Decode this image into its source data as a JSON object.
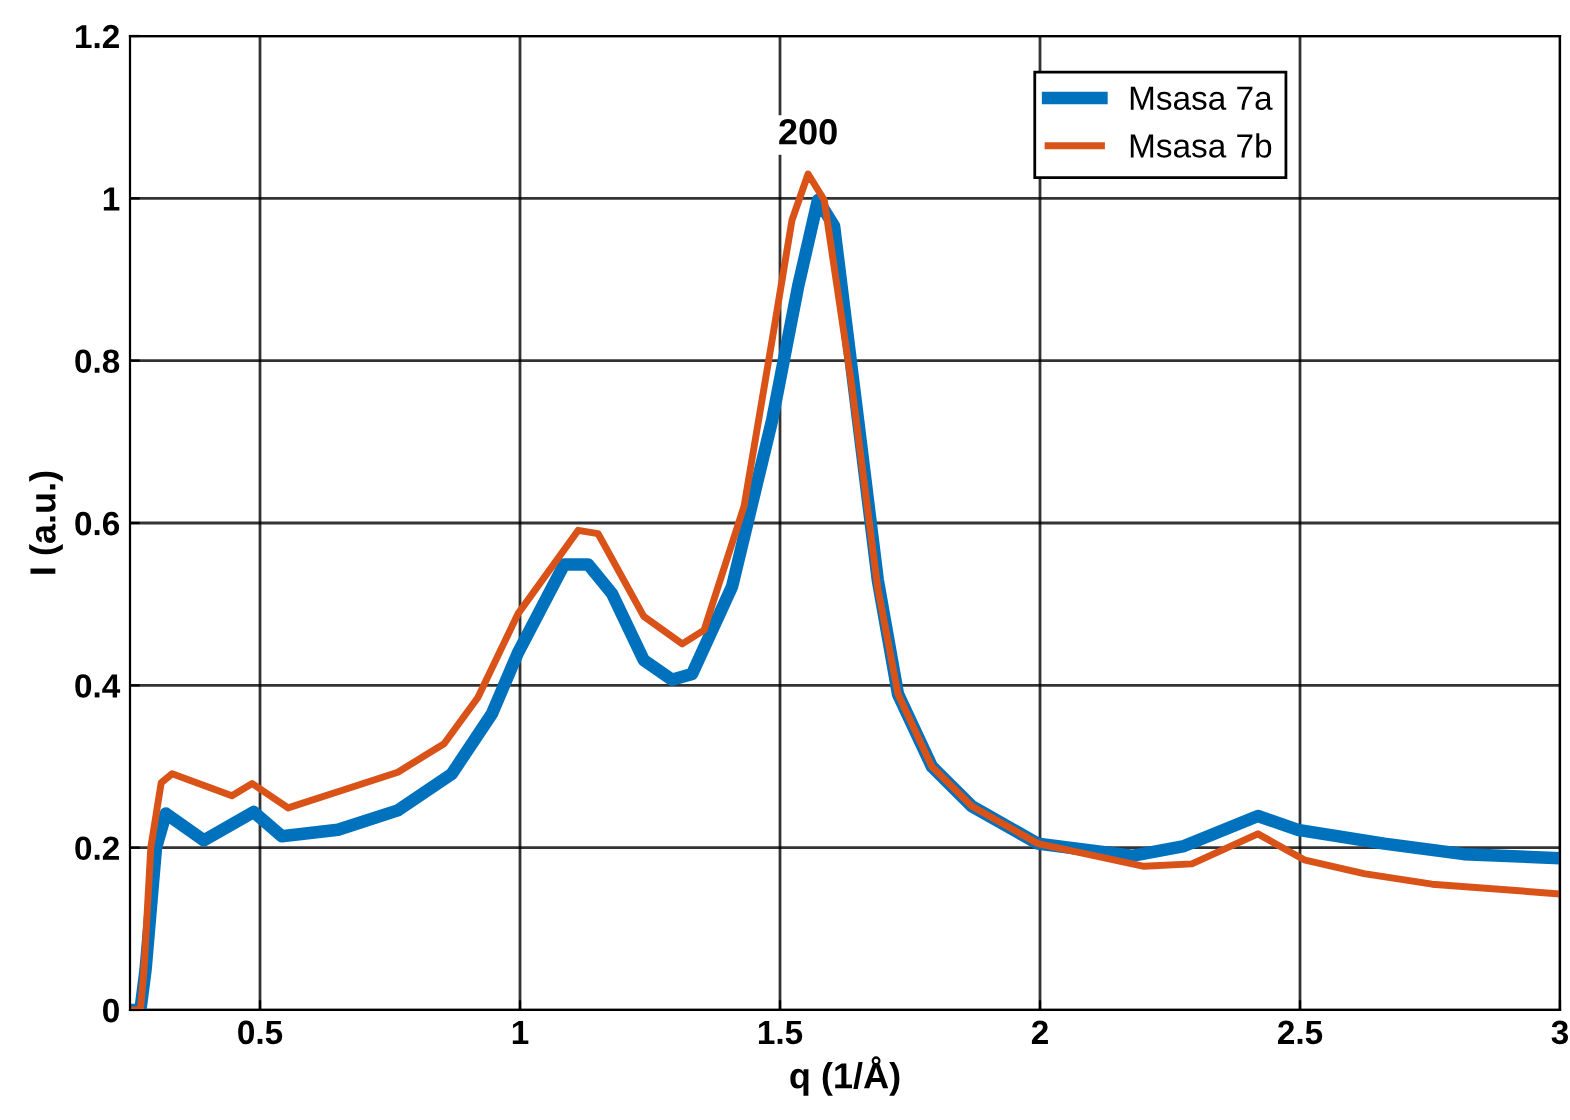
{
  "chart_data": {
    "type": "line",
    "xlabel": "q (1/Å)",
    "ylabel": "I (a.u.)",
    "xlim": [
      0.25,
      3
    ],
    "ylim": [
      0,
      1.2
    ],
    "xticks": [
      0.5,
      1,
      1.5,
      2,
      2.5,
      3
    ],
    "yticks": [
      0,
      0.2,
      0.4,
      0.6,
      0.8,
      1,
      1.2
    ],
    "grid": true,
    "legend": "top right",
    "marker": "none",
    "line_style": "solid",
    "annotations": [
      {
        "text": "200",
        "x": 1.554,
        "y": 1.03
      }
    ],
    "series": [
      {
        "name": "Msasa 7a",
        "color": "#0072bd",
        "x": [
          0.25,
          0.27,
          0.28,
          0.3,
          0.319,
          0.392,
          0.488,
          0.542,
          0.65,
          0.765,
          0.869,
          0.946,
          0.996,
          1.085,
          1.131,
          1.177,
          1.238,
          1.292,
          1.331,
          1.408,
          1.485,
          1.535,
          1.573,
          1.604,
          1.642,
          1.688,
          1.727,
          1.792,
          1.869,
          1.996,
          2.177,
          2.277,
          2.419,
          2.496,
          2.662,
          2.815,
          3.0
        ],
        "values": [
          0,
          0,
          0.05,
          0.2,
          0.242,
          0.209,
          0.244,
          0.214,
          0.222,
          0.246,
          0.291,
          0.365,
          0.44,
          0.549,
          0.549,
          0.513,
          0.431,
          0.407,
          0.414,
          0.522,
          0.727,
          0.892,
          0.998,
          0.966,
          0.769,
          0.53,
          0.389,
          0.3,
          0.251,
          0.205,
          0.19,
          0.202,
          0.239,
          0.222,
          0.205,
          0.192,
          0.187
        ]
      },
      {
        "name": "Msasa 7b",
        "color": "#d95319",
        "x": [
          0.25,
          0.27,
          0.277,
          0.29,
          0.31,
          0.331,
          0.446,
          0.485,
          0.554,
          0.66,
          0.765,
          0.854,
          0.919,
          0.996,
          1.112,
          1.15,
          1.238,
          1.312,
          1.354,
          1.431,
          1.485,
          1.523,
          1.554,
          1.585,
          1.638,
          1.688,
          1.727,
          1.792,
          1.869,
          1.996,
          2.2,
          2.292,
          2.419,
          2.508,
          2.623,
          2.754,
          3.0
        ],
        "values": [
          0,
          0,
          0.05,
          0.2,
          0.28,
          0.291,
          0.264,
          0.279,
          0.249,
          0.271,
          0.293,
          0.328,
          0.385,
          0.488,
          0.591,
          0.587,
          0.485,
          0.451,
          0.468,
          0.621,
          0.826,
          0.973,
          1.03,
          0.998,
          0.769,
          0.52,
          0.389,
          0.3,
          0.251,
          0.205,
          0.177,
          0.18,
          0.217,
          0.185,
          0.168,
          0.155,
          0.143
        ]
      }
    ]
  }
}
